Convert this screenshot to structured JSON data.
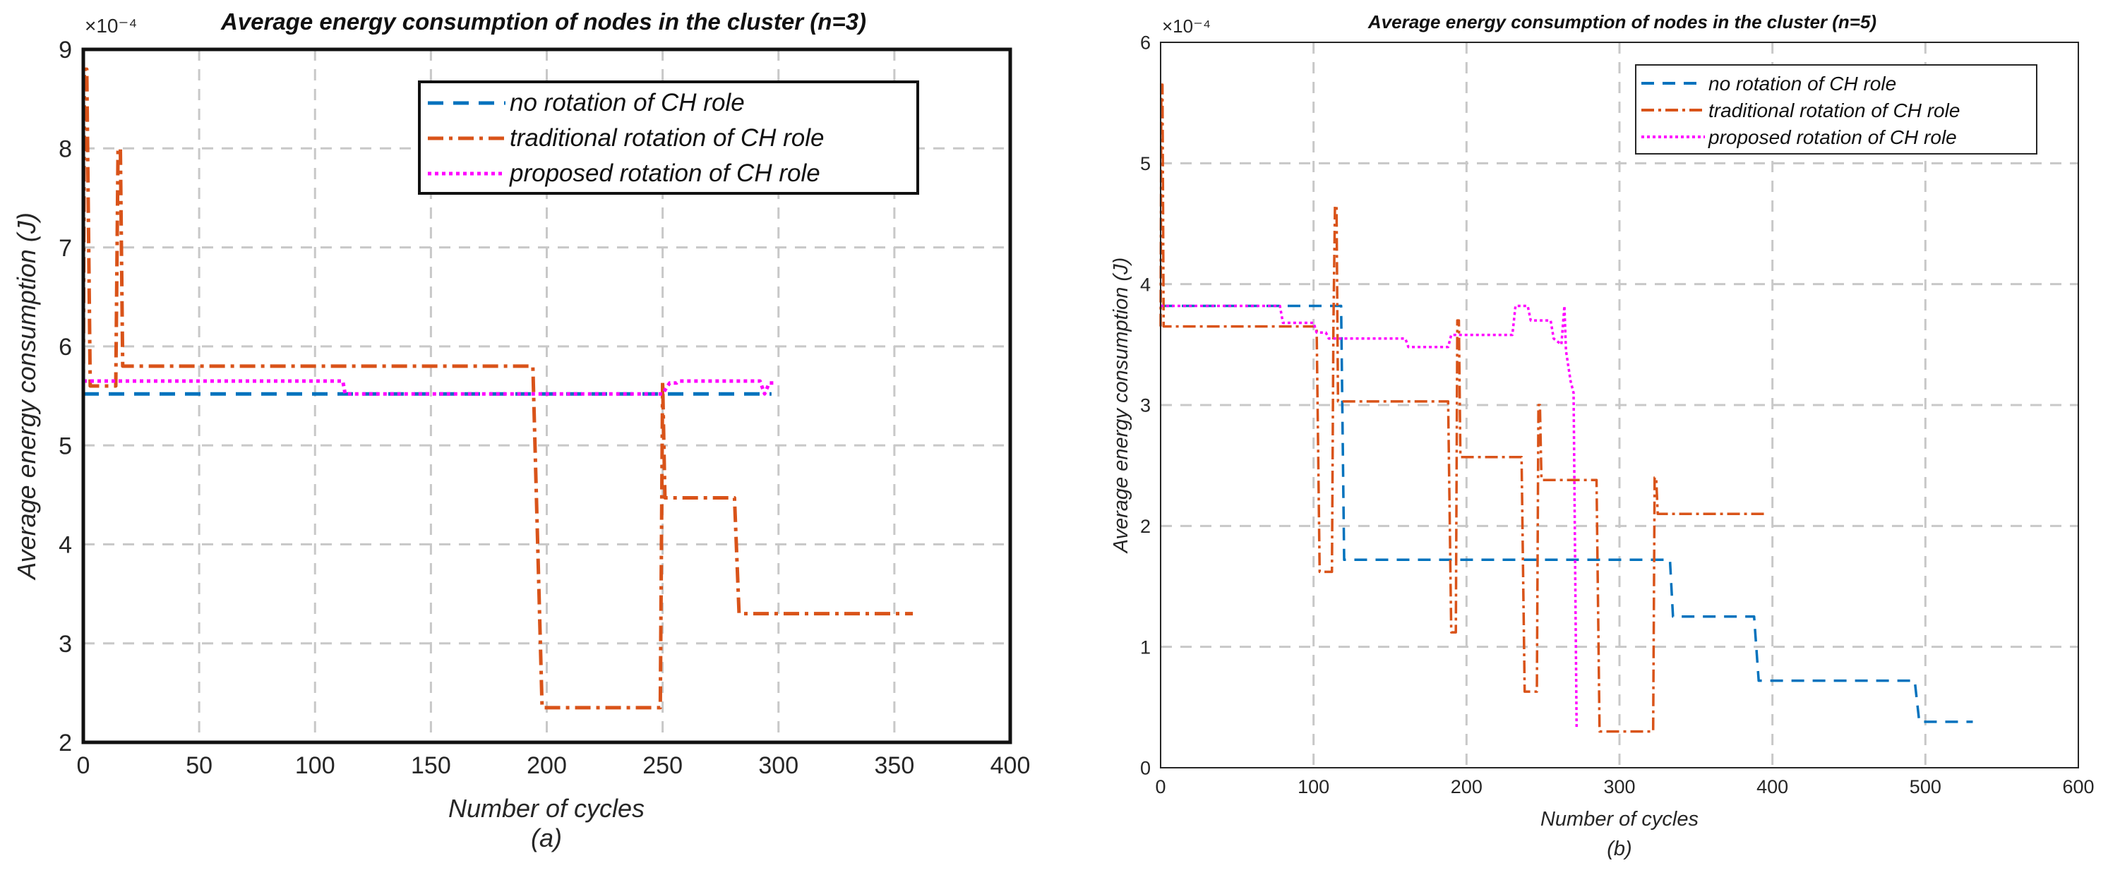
{
  "chart_data": [
    {
      "type": "line",
      "title": "Average energy consumption of nodes in the cluster (n=3)",
      "xlabel": "Number of cycles",
      "ylabel": "Average energy consumption (J)",
      "caption": "(a)",
      "exponent_label": "×10⁻⁴",
      "xlim": [
        0,
        400
      ],
      "ylim": [
        2,
        9
      ],
      "xticks": [
        "0",
        "50",
        "100",
        "150",
        "200",
        "250",
        "300",
        "350",
        "400"
      ],
      "yticks": [
        "2",
        "3",
        "4",
        "5",
        "6",
        "7",
        "8",
        "9"
      ],
      "xtick_values": [
        0,
        50,
        100,
        150,
        200,
        250,
        300,
        350,
        400
      ],
      "ytick_values": [
        2,
        3,
        4,
        5,
        6,
        7,
        8,
        9
      ],
      "grid": true,
      "legend_position": "top-right",
      "y_scale": "×1e-4",
      "series": [
        {
          "name": "no rotation of CH role",
          "color": "#0072BD",
          "style": "dashed",
          "points": [
            [
              0,
              5.52
            ],
            [
              297,
              5.52
            ]
          ]
        },
        {
          "name": "traditional rotation of CH role",
          "color": "#D95319",
          "style": "dashdot",
          "points": [
            [
              0,
              5.52
            ],
            [
              0.5,
              8.8
            ],
            [
              1.5,
              8.8
            ],
            [
              3,
              5.6
            ],
            [
              14,
              5.6
            ],
            [
              15,
              8.0
            ],
            [
              16,
              8.0
            ],
            [
              17,
              5.8
            ],
            [
              194,
              5.8
            ],
            [
              198,
              2.35
            ],
            [
              249,
              2.35
            ],
            [
              250,
              5.65
            ],
            [
              251,
              4.47
            ],
            [
              281,
              4.47
            ],
            [
              283,
              3.3
            ],
            [
              358,
              3.3
            ]
          ]
        },
        {
          "name": "proposed rotation of CH role",
          "color": "#FF00FF",
          "style": "dotted",
          "points": [
            [
              0,
              5.65
            ],
            [
              112,
              5.65
            ],
            [
              113,
              5.52
            ],
            [
              250,
              5.52
            ],
            [
              253,
              5.63
            ],
            [
              256,
              5.63
            ],
            [
              257,
              5.65
            ],
            [
              292,
              5.65
            ],
            [
              294,
              5.52
            ],
            [
              296,
              5.63
            ],
            [
              298,
              5.63
            ]
          ]
        }
      ]
    },
    {
      "type": "line",
      "title": "Average energy consumption of nodes in the cluster (n=5)",
      "xlabel": "Number of cycles",
      "ylabel": "Average energy consumption (J)",
      "caption": "(b)",
      "exponent_label": "×10⁻⁴",
      "xlim": [
        0,
        600
      ],
      "ylim": [
        0,
        6
      ],
      "xticks": [
        "0",
        "100",
        "200",
        "300",
        "400",
        "500",
        "600"
      ],
      "yticks": [
        "0",
        "1",
        "2",
        "3",
        "4",
        "5",
        "6"
      ],
      "xtick_values": [
        0,
        100,
        200,
        300,
        400,
        500,
        600
      ],
      "ytick_values": [
        0,
        1,
        2,
        3,
        4,
        5,
        6
      ],
      "grid": true,
      "legend_position": "top-right",
      "y_scale": "×1e-4",
      "series": [
        {
          "name": "no rotation of CH role",
          "color": "#0072BD",
          "style": "dashed",
          "points": [
            [
              0,
              3.82
            ],
            [
              118,
              3.82
            ],
            [
              120,
              1.72
            ],
            [
              333,
              1.72
            ],
            [
              335,
              1.25
            ],
            [
              388,
              1.25
            ],
            [
              391,
              0.72
            ],
            [
              493,
              0.72
            ],
            [
              496,
              0.38
            ],
            [
              531,
              0.38
            ]
          ]
        },
        {
          "name": "traditional rotation of CH role",
          "color": "#D95319",
          "style": "dashdot",
          "points": [
            [
              0,
              3.65
            ],
            [
              0.5,
              5.65
            ],
            [
              1.2,
              5.65
            ],
            [
              2,
              3.65
            ],
            [
              102,
              3.65
            ],
            [
              104,
              1.62
            ],
            [
              112,
              1.62
            ],
            [
              113,
              3.65
            ],
            [
              114,
              4.65
            ],
            [
              115,
              4.65
            ],
            [
              116,
              3.03
            ],
            [
              188,
              3.03
            ],
            [
              190,
              1.12
            ],
            [
              193,
              1.12
            ],
            [
              194,
              3.7
            ],
            [
              195,
              3.7
            ],
            [
              196,
              2.57
            ],
            [
              236,
              2.57
            ],
            [
              238,
              0.63
            ],
            [
              246,
              0.63
            ],
            [
              247,
              3.0
            ],
            [
              248,
              3.0
            ],
            [
              249,
              2.38
            ],
            [
              285,
              2.38
            ],
            [
              287,
              0.3
            ],
            [
              322,
              0.3
            ],
            [
              323,
              2.4
            ],
            [
              324,
              2.4
            ],
            [
              325,
              2.1
            ],
            [
              395,
              2.1
            ]
          ]
        },
        {
          "name": "proposed rotation of CH role",
          "color": "#FF00FF",
          "style": "dotted",
          "points": [
            [
              0,
              3.82
            ],
            [
              78,
              3.82
            ],
            [
              80,
              3.68
            ],
            [
              100,
              3.68
            ],
            [
              102,
              3.6
            ],
            [
              108,
              3.6
            ],
            [
              110,
              3.55
            ],
            [
              160,
              3.55
            ],
            [
              162,
              3.48
            ],
            [
              188,
              3.48
            ],
            [
              190,
              3.58
            ],
            [
              230,
              3.58
            ],
            [
              232,
              3.82
            ],
            [
              240,
              3.82
            ],
            [
              242,
              3.7
            ],
            [
              255,
              3.7
            ],
            [
              257,
              3.55
            ],
            [
              262,
              3.5
            ],
            [
              264,
              3.82
            ],
            [
              265,
              3.45
            ],
            [
              268,
              3.2
            ],
            [
              270,
              3.1
            ],
            [
              272,
              0.32
            ]
          ]
        }
      ]
    }
  ]
}
